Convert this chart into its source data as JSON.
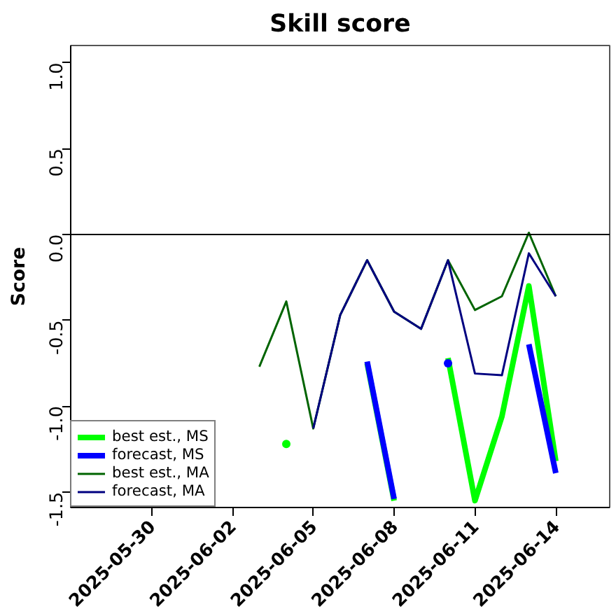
{
  "chart_data": {
    "type": "line",
    "title": "Skill score",
    "ylabel": "Score",
    "x": [
      "2025-06-03",
      "2025-06-04",
      "2025-06-05",
      "2025-06-06",
      "2025-06-07",
      "2025-06-08",
      "2025-06-09",
      "2025-06-10",
      "2025-06-11",
      "2025-06-12",
      "2025-06-13",
      "2025-06-14"
    ],
    "series": [
      {
        "name": "best est., MS",
        "color": "#00ff00",
        "values": [
          null,
          -1.22,
          null,
          null,
          -0.75,
          -1.55,
          null,
          -0.72,
          -1.55,
          -1.06,
          -0.3,
          -1.32
        ]
      },
      {
        "name": "forecast, MS",
        "color": "#0000ff",
        "values": [
          null,
          null,
          null,
          null,
          -0.74,
          -1.54,
          null,
          -0.75,
          null,
          null,
          -0.64,
          -1.39
        ]
      },
      {
        "name": "best est., MA",
        "color": "#006400",
        "values": [
          -0.77,
          -0.39,
          -1.13,
          -0.47,
          -0.15,
          -0.45,
          -0.55,
          -0.15,
          -0.44,
          -0.36,
          0.01,
          -0.36
        ]
      },
      {
        "name": "forecast, MA",
        "color": "#000080",
        "values": [
          null,
          null,
          -1.13,
          -0.47,
          -0.15,
          -0.45,
          -0.55,
          -0.15,
          -0.81,
          -0.82,
          -0.11,
          -0.36
        ]
      }
    ],
    "ref_lines": [
      {
        "axis": "y",
        "value": 0,
        "color": "#000000"
      }
    ],
    "xlim": [
      "2025-05-27",
      "2025-06-16"
    ],
    "xticks": [
      "2025-05-30",
      "2025-06-02",
      "2025-06-05",
      "2025-06-08",
      "2025-06-11",
      "2025-06-14"
    ],
    "ylim": [
      -1.59,
      1.1
    ],
    "yticks": [
      {
        "value": -1.5,
        "label": "-1.5"
      },
      {
        "value": -1,
        "label": "-1.0"
      },
      {
        "value": -0.5,
        "label": "-0.5"
      },
      {
        "value": 0,
        "label": "0.0"
      },
      {
        "value": 0.5,
        "label": "0.5"
      },
      {
        "value": 1,
        "label": "1.0"
      }
    ],
    "grid": false,
    "legend": "bottom left",
    "marker": "none",
    "line_style": "solid"
  }
}
